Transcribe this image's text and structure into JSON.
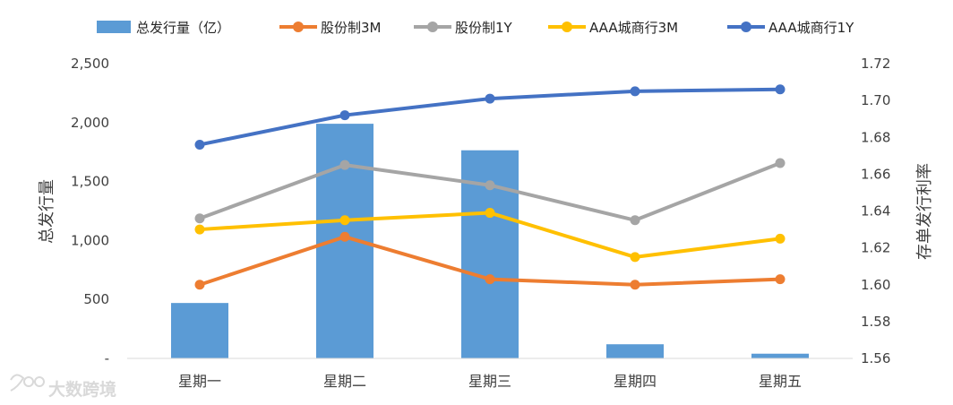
{
  "chart_data": {
    "type": "bar",
    "categories": [
      "星期一",
      "星期二",
      "星期三",
      "星期四",
      "星期五"
    ],
    "bars": {
      "name": "总发行量（亿）",
      "color": "#5b9bd5",
      "values": [
        470,
        1990,
        1765,
        120,
        40
      ]
    },
    "series": [
      {
        "name": "股份制3M",
        "color": "#ed7d31",
        "values": [
          1.6,
          1.626,
          1.603,
          1.6,
          1.603
        ]
      },
      {
        "name": "股份制1Y",
        "color": "#a5a5a5",
        "values": [
          1.636,
          1.665,
          1.654,
          1.635,
          1.666
        ]
      },
      {
        "name": "AAA城商行3M",
        "color": "#ffc000",
        "values": [
          1.63,
          1.635,
          1.639,
          1.615,
          1.625
        ]
      },
      {
        "name": "AAA城商行1Y",
        "color": "#4472c4",
        "values": [
          1.676,
          1.692,
          1.701,
          1.705,
          1.706
        ]
      }
    ],
    "ylabel": "总发行量",
    "y2label": "存单发行利率",
    "ylim": [
      0,
      2500
    ],
    "y2lim": [
      1.56,
      1.72
    ],
    "yticks": [
      "-",
      "500",
      "1,000",
      "1,500",
      "2,000",
      "2,500"
    ],
    "y2ticks": [
      "1.56",
      "1.58",
      "1.60",
      "1.62",
      "1.64",
      "1.66",
      "1.68",
      "1.70",
      "1.72"
    ],
    "grid": false,
    "legend_position": "top"
  },
  "watermark": "大数跨境"
}
